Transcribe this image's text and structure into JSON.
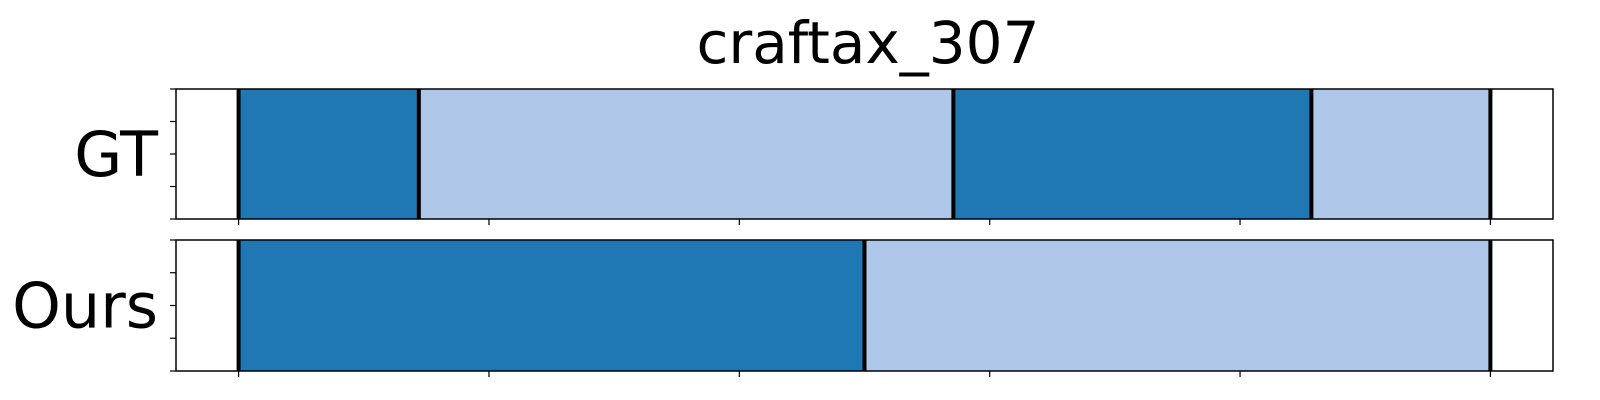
{
  "chart_data": {
    "type": "bar",
    "title": "craftax_307",
    "x_range": [
      -0.5,
      10.5
    ],
    "rows": [
      {
        "label": "GT",
        "segments": [
          {
            "start": 0.0,
            "end": 1.44,
            "class": 0
          },
          {
            "start": 1.44,
            "end": 5.71,
            "class": 1
          },
          {
            "start": 5.71,
            "end": 8.57,
            "class": 0
          },
          {
            "start": 8.57,
            "end": 10.0,
            "class": 1
          }
        ]
      },
      {
        "label": "Ours",
        "segments": [
          {
            "start": 0.0,
            "end": 5.0,
            "class": 0
          },
          {
            "start": 5.0,
            "end": 10.0,
            "class": 1
          }
        ]
      }
    ],
    "x_ticks": [
      0,
      2,
      4,
      6,
      8,
      10
    ],
    "x_tick_labels_visible": false,
    "y_tick_labels_visible": false,
    "grid": false,
    "legend": "none"
  },
  "colors": {
    "class_0": "#1f77b4",
    "class_1": "#aec7e8",
    "boundary": "#000000"
  }
}
